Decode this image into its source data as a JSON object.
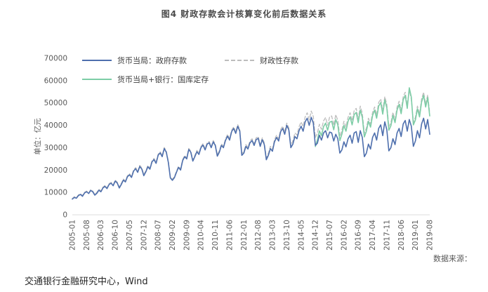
{
  "title": "图4 财政存款会计核算变化前后数据关系",
  "source_label": "数据来源：",
  "footer": "交通银行金融研究中心，Wind",
  "chart_data": {
    "type": "line",
    "title": "图4 财政存款会计核算变化前后数据关系",
    "xlabel": "",
    "ylabel": "单位：亿元",
    "ylim": [
      0,
      70000
    ],
    "ytick_step": 10000,
    "grid": false,
    "legend_position": "top-inside",
    "n_points": 176,
    "x_start": "2005-01",
    "x_end": "2019-08",
    "x_tick_every": 7,
    "x_tick_labels": [
      "2005-01",
      "2005-08",
      "2006-03",
      "2006-10",
      "2007-05",
      "2007-12",
      "2008-07",
      "2009-02",
      "2009-09",
      "2010-04",
      "2010-11",
      "2011-06",
      "2012-01",
      "2012-08",
      "2013-03",
      "2013-10",
      "2014-05",
      "2014-12",
      "2015-07",
      "2016-02",
      "2016-09",
      "2017-04",
      "2017-11",
      "2018-06",
      "2019-01",
      "2019-08"
    ],
    "legend": [
      {
        "name": "货币当局：政府存款",
        "color": "#4e6fad",
        "dash": false
      },
      {
        "name": "财政性存款",
        "color": "#bdbdbd",
        "dash": true
      },
      {
        "name": "货币当局+银行：国库定存",
        "color": "#7dcda6",
        "dash": false
      }
    ],
    "series": [
      {
        "name": "财政性存款",
        "color": "#bdbdbd",
        "dash": true,
        "width": 1.3,
        "start_index": 0,
        "values": [
          7300,
          8100,
          7700,
          8900,
          9400,
          8600,
          10100,
          10600,
          9800,
          11200,
          10600,
          9100,
          10000,
          11400,
          10700,
          12400,
          13100,
          12100,
          14000,
          14500,
          13400,
          15500,
          14600,
          12400,
          14100,
          16000,
          15200,
          17500,
          18400,
          17200,
          20100,
          21100,
          19500,
          22100,
          21000,
          18000,
          19700,
          22000,
          20900,
          24100,
          25200,
          23500,
          27100,
          28200,
          26500,
          30100,
          28500,
          24000,
          17000,
          15900,
          17100,
          19500,
          21700,
          20500,
          24700,
          26500,
          25500,
          29700,
          28500,
          24500,
          26600,
          28800,
          27600,
          30600,
          31800,
          29600,
          32200,
          32800,
          30600,
          33200,
          31600,
          26800,
          28700,
          31700,
          30700,
          33900,
          35900,
          34100,
          37900,
          39300,
          37100,
          40300,
          38100,
          27300,
          28400,
          31400,
          30200,
          33000,
          34000,
          31800,
          34400,
          35000,
          31400,
          34400,
          32200,
          25400,
          27600,
          30600,
          29400,
          33600,
          35600,
          34000,
          38200,
          39600,
          37000,
          41000,
          39000,
          31000,
          33100,
          36600,
          35700,
          39400,
          41500,
          39500,
          43800,
          45600,
          42600,
          46400,
          44000,
          34500,
          36500,
          40500,
          38200,
          42000,
          43500,
          40000,
          43800,
          44200,
          40000,
          44800,
          42200,
          35000,
          37800,
          41800,
          39200,
          43600,
          45600,
          42000,
          46600,
          47600,
          42800,
          48600,
          45400,
          36400,
          38800,
          43200,
          40600,
          45800,
          48200,
          44600,
          50200,
          51800,
          46400,
          52800,
          49400,
          39400,
          41200,
          45800,
          42600,
          48200,
          50800,
          46600,
          52800,
          54800,
          49000,
          55800,
          51600,
          41400,
          43600,
          48600,
          45000,
          51800,
          54800,
          49400,
          53600,
          45400
        ]
      },
      {
        "name": "货币当局+银行：国库定存",
        "color": "#7dcda6",
        "dash": false,
        "width": 1.6,
        "start_index": 119,
        "values": [
          30500,
          33500,
          37500,
          35400,
          39400,
          41000,
          37800,
          41400,
          41800,
          38000,
          42600,
          40200,
          33200,
          36000,
          40000,
          37400,
          41800,
          43800,
          40200,
          44800,
          45800,
          41200,
          46800,
          43600,
          34800,
          37400,
          41800,
          39200,
          44400,
          46800,
          43200,
          48600,
          50200,
          45000,
          51400,
          47800,
          37800,
          39800,
          44400,
          41200,
          46800,
          49400,
          45200,
          51400,
          53400,
          47600,
          56800,
          52600,
          40200,
          42400,
          47400,
          43800,
          50400,
          53400,
          48200,
          52400,
          44200
        ]
      },
      {
        "name": "货币当局：政府存款",
        "color": "#4e6fad",
        "dash": false,
        "width": 1.6,
        "start_index": 0,
        "values": [
          7000,
          7800,
          7400,
          8600,
          9100,
          8300,
          9800,
          10300,
          9500,
          10900,
          10300,
          8800,
          9600,
          11000,
          10300,
          12000,
          12700,
          11700,
          13600,
          14100,
          13000,
          15100,
          14200,
          12000,
          13600,
          15500,
          14700,
          17000,
          17900,
          16700,
          19600,
          20600,
          19000,
          21600,
          20500,
          17500,
          19200,
          21500,
          20400,
          23600,
          24700,
          23000,
          26600,
          27700,
          26000,
          29600,
          28000,
          23500,
          16500,
          15400,
          16600,
          19000,
          21200,
          20000,
          24200,
          26000,
          25000,
          29200,
          28000,
          24000,
          26000,
          28200,
          27000,
          30000,
          31200,
          29000,
          31600,
          32200,
          30000,
          32600,
          31000,
          26200,
          28000,
          31000,
          30000,
          33200,
          35200,
          33400,
          37200,
          38600,
          36400,
          39600,
          37400,
          26600,
          27600,
          30600,
          29400,
          32200,
          33200,
          31000,
          33600,
          34200,
          30600,
          33600,
          31400,
          24600,
          26600,
          29600,
          28400,
          32600,
          34600,
          33000,
          37200,
          38600,
          36000,
          40000,
          38000,
          30000,
          31600,
          35000,
          34000,
          37600,
          39600,
          37400,
          41600,
          43200,
          40000,
          43600,
          41000,
          31000,
          32000,
          35600,
          33400,
          36600,
          37600,
          34400,
          37000,
          36600,
          33000,
          36000,
          34000,
          27600,
          29000,
          32600,
          30400,
          34000,
          35600,
          32000,
          36600,
          37200,
          32400,
          37600,
          34600,
          26000,
          27600,
          31600,
          29400,
          34600,
          36600,
          33400,
          38600,
          40200,
          35400,
          41600,
          38000,
          28600,
          30000,
          34000,
          31400,
          36600,
          38600,
          35000,
          40600,
          42200,
          37400,
          42600,
          39600,
          30600,
          33000,
          37600,
          34400,
          40600,
          43200,
          38400,
          42600,
          36000
        ]
      }
    ]
  }
}
